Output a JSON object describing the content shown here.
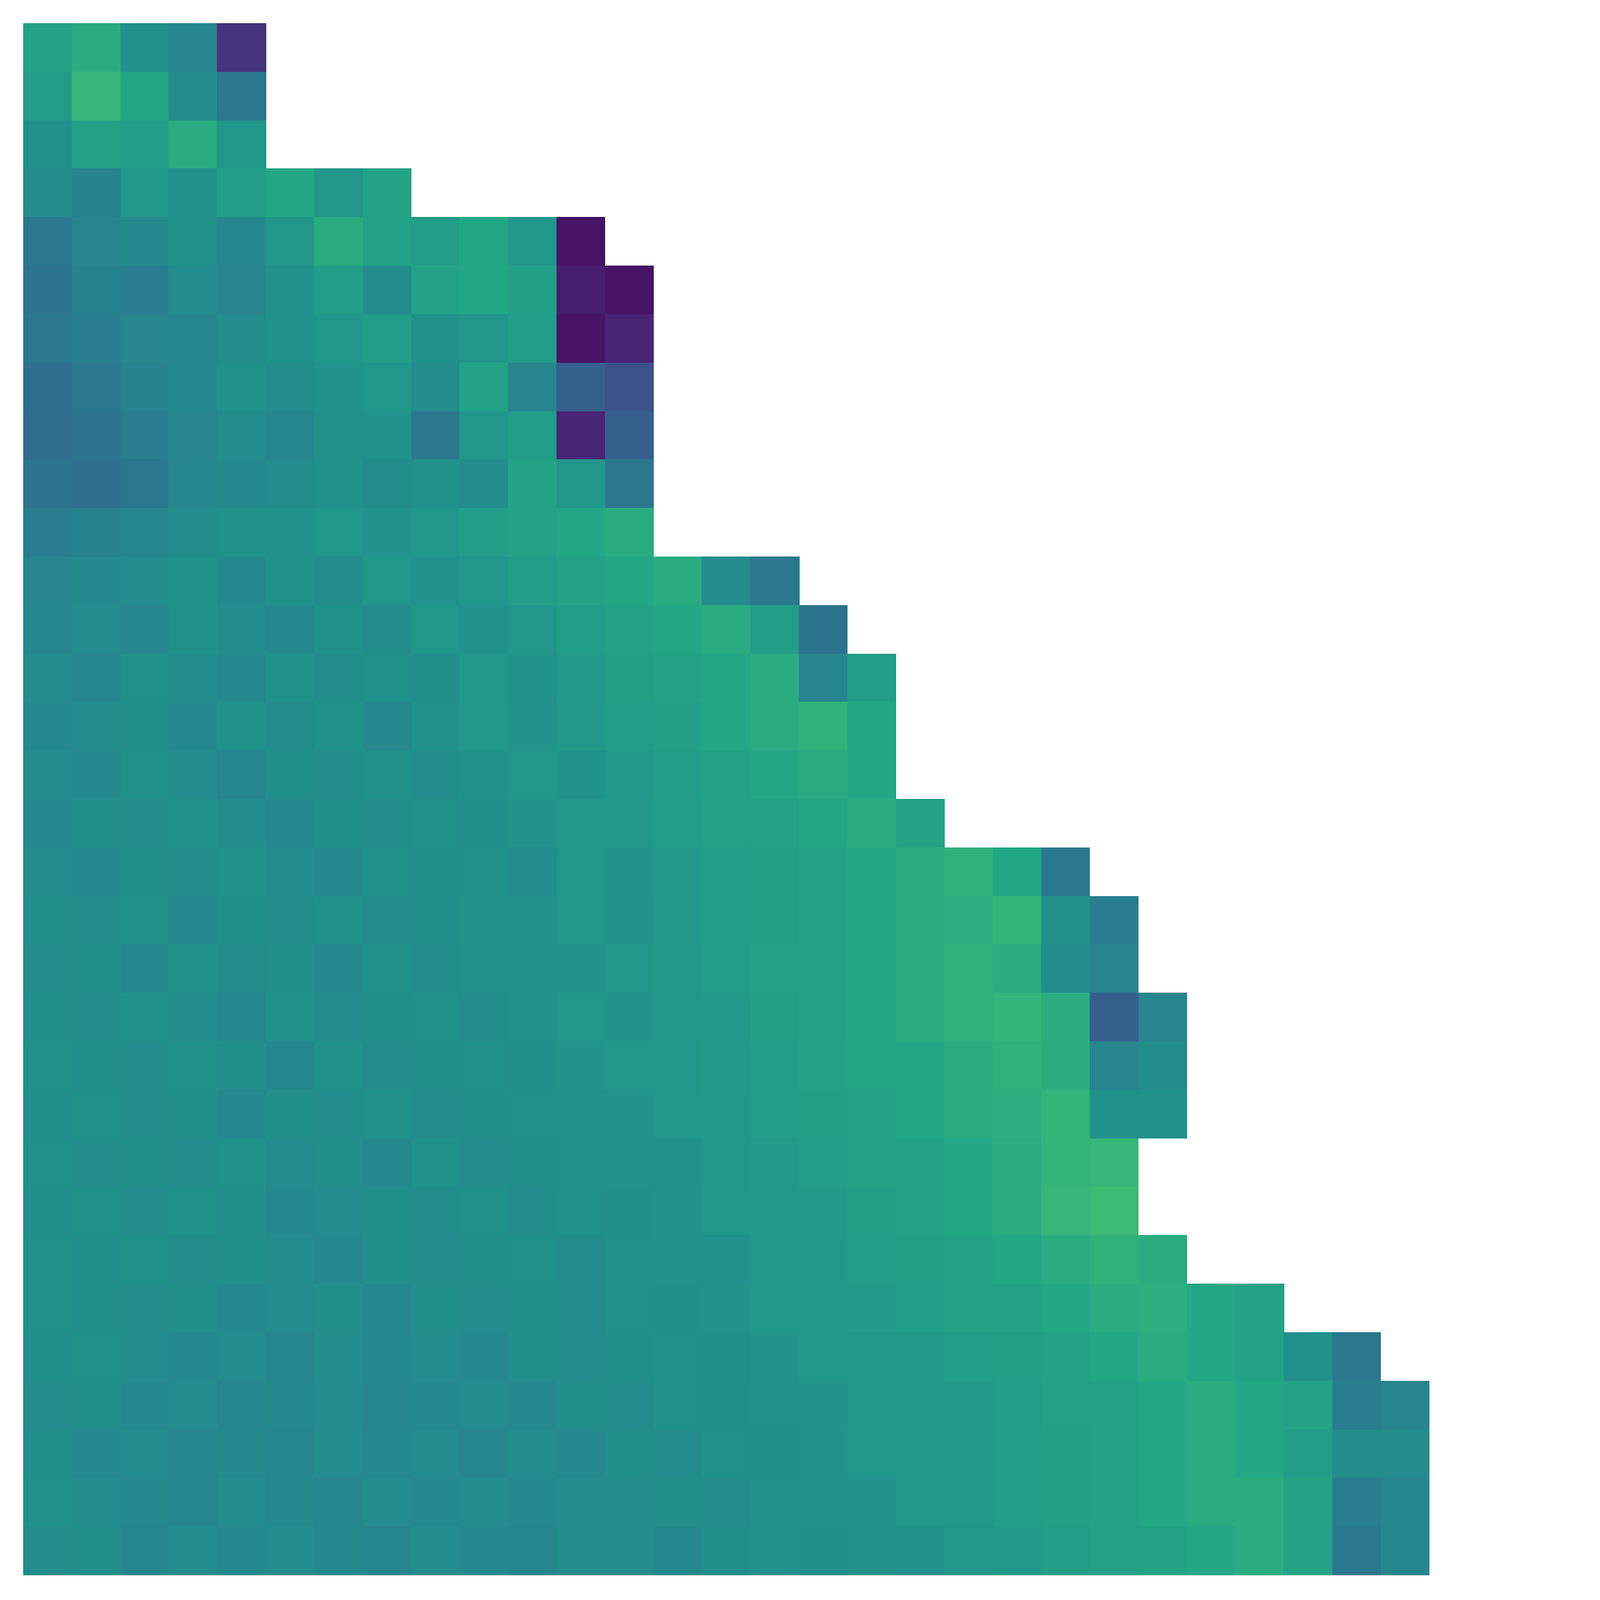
{
  "chart_data": {
    "type": "heatmap",
    "tick_labels": false,
    "zlim": [
      0,
      1
    ],
    "cells": [
      [
        0.58,
        0.62,
        0.5,
        0.45,
        0.15,
        null,
        null,
        null,
        null,
        null,
        null,
        null,
        null,
        null,
        null,
        null,
        null,
        null,
        null,
        null,
        null,
        null,
        null,
        null,
        null,
        null,
        null,
        null,
        null,
        null,
        null,
        null
      ],
      [
        0.55,
        0.66,
        0.6,
        0.48,
        0.4,
        null,
        null,
        null,
        null,
        null,
        null,
        null,
        null,
        null,
        null,
        null,
        null,
        null,
        null,
        null,
        null,
        null,
        null,
        null,
        null,
        null,
        null,
        null,
        null,
        null,
        null,
        null
      ],
      [
        0.5,
        0.58,
        0.55,
        0.62,
        0.52,
        null,
        null,
        null,
        null,
        null,
        null,
        null,
        null,
        null,
        null,
        null,
        null,
        null,
        null,
        null,
        null,
        null,
        null,
        null,
        null,
        null,
        null,
        null,
        null,
        null,
        null,
        null
      ],
      [
        0.48,
        0.44,
        0.52,
        0.5,
        0.55,
        0.6,
        0.52,
        0.58,
        null,
        null,
        null,
        null,
        null,
        null,
        null,
        null,
        null,
        null,
        null,
        null,
        null,
        null,
        null,
        null,
        null,
        null,
        null,
        null,
        null,
        null,
        null,
        null
      ],
      [
        0.4,
        0.45,
        0.47,
        0.5,
        0.46,
        0.52,
        0.62,
        0.58,
        0.55,
        0.6,
        0.52,
        0.05,
        null,
        null,
        null,
        null,
        null,
        null,
        null,
        null,
        null,
        null,
        null,
        null,
        null,
        null,
        null,
        null,
        null,
        null,
        null,
        null
      ],
      [
        0.38,
        0.44,
        0.42,
        0.48,
        0.45,
        0.5,
        0.55,
        0.48,
        0.58,
        0.6,
        0.56,
        0.08,
        0.05,
        null,
        null,
        null,
        null,
        null,
        null,
        null,
        null,
        null,
        null,
        null,
        null,
        null,
        null,
        null,
        null,
        null,
        null,
        null
      ],
      [
        0.4,
        0.42,
        0.45,
        0.46,
        0.48,
        0.5,
        0.52,
        0.55,
        0.5,
        0.52,
        0.55,
        0.05,
        0.1,
        null,
        null,
        null,
        null,
        null,
        null,
        null,
        null,
        null,
        null,
        null,
        null,
        null,
        null,
        null,
        null,
        null,
        null,
        null
      ],
      [
        0.36,
        0.4,
        0.44,
        0.47,
        0.5,
        0.48,
        0.5,
        0.52,
        0.48,
        0.58,
        0.45,
        0.3,
        0.25,
        null,
        null,
        null,
        null,
        null,
        null,
        null,
        null,
        null,
        null,
        null,
        null,
        null,
        null,
        null,
        null,
        null,
        null,
        null
      ],
      [
        0.35,
        0.38,
        0.42,
        0.45,
        0.48,
        0.46,
        0.5,
        0.5,
        0.4,
        0.52,
        0.55,
        0.1,
        0.3,
        null,
        null,
        null,
        null,
        null,
        null,
        null,
        null,
        null,
        null,
        null,
        null,
        null,
        null,
        null,
        null,
        null,
        null,
        null
      ],
      [
        0.38,
        0.36,
        0.4,
        0.46,
        0.47,
        0.48,
        0.5,
        0.48,
        0.5,
        0.48,
        0.58,
        0.52,
        0.4,
        null,
        null,
        null,
        null,
        null,
        null,
        null,
        null,
        null,
        null,
        null,
        null,
        null,
        null,
        null,
        null,
        null,
        null,
        null
      ],
      [
        0.42,
        0.44,
        0.46,
        0.48,
        0.5,
        0.5,
        0.52,
        0.5,
        0.52,
        0.55,
        0.58,
        0.6,
        0.62,
        null,
        null,
        null,
        null,
        null,
        null,
        null,
        null,
        null,
        null,
        null,
        null,
        null,
        null,
        null,
        null,
        null,
        null,
        null
      ],
      [
        0.45,
        0.47,
        0.48,
        0.5,
        0.47,
        0.5,
        0.48,
        0.52,
        0.5,
        0.52,
        0.55,
        0.58,
        0.6,
        0.62,
        0.48,
        0.4,
        null,
        null,
        null,
        null,
        null,
        null,
        null,
        null,
        null,
        null,
        null,
        null,
        null,
        null,
        null,
        null
      ],
      [
        0.46,
        0.48,
        0.46,
        0.5,
        0.48,
        0.47,
        0.5,
        0.48,
        0.52,
        0.5,
        0.52,
        0.55,
        0.58,
        0.6,
        0.62,
        0.55,
        0.38,
        null,
        null,
        null,
        null,
        null,
        null,
        null,
        null,
        null,
        null,
        null,
        null,
        null,
        null,
        null
      ],
      [
        0.48,
        0.46,
        0.5,
        0.48,
        0.47,
        0.5,
        0.48,
        0.5,
        0.49,
        0.52,
        0.5,
        0.54,
        0.56,
        0.58,
        0.6,
        0.62,
        0.45,
        0.55,
        null,
        null,
        null,
        null,
        null,
        null,
        null,
        null,
        null,
        null,
        null,
        null,
        null,
        null
      ],
      [
        0.47,
        0.48,
        0.49,
        0.47,
        0.5,
        0.48,
        0.5,
        0.47,
        0.5,
        0.52,
        0.51,
        0.53,
        0.55,
        0.56,
        0.6,
        0.62,
        0.64,
        0.6,
        null,
        null,
        null,
        null,
        null,
        null,
        null,
        null,
        null,
        null,
        null,
        null,
        null,
        null
      ],
      [
        0.48,
        0.47,
        0.5,
        0.48,
        0.46,
        0.49,
        0.48,
        0.5,
        0.48,
        0.5,
        0.52,
        0.5,
        0.54,
        0.55,
        0.58,
        0.6,
        0.62,
        0.6,
        null,
        null,
        null,
        null,
        null,
        null,
        null,
        null,
        null,
        null,
        null,
        null,
        null,
        null
      ],
      [
        0.47,
        0.49,
        0.48,
        0.5,
        0.48,
        0.47,
        0.49,
        0.48,
        0.5,
        0.49,
        0.51,
        0.52,
        0.53,
        0.55,
        0.57,
        0.58,
        0.6,
        0.62,
        0.58,
        null,
        null,
        null,
        null,
        null,
        null,
        null,
        null,
        null,
        null,
        null,
        null,
        null
      ],
      [
        0.48,
        0.47,
        0.49,
        0.48,
        0.5,
        0.48,
        0.47,
        0.5,
        0.49,
        0.5,
        0.48,
        0.52,
        0.51,
        0.53,
        0.55,
        0.56,
        0.58,
        0.6,
        0.62,
        0.64,
        0.6,
        0.4,
        null,
        null,
        null,
        null,
        null,
        null,
        null,
        null,
        null,
        null
      ],
      [
        0.49,
        0.48,
        0.5,
        0.47,
        0.49,
        0.48,
        0.5,
        0.48,
        0.49,
        0.51,
        0.5,
        0.52,
        0.5,
        0.53,
        0.55,
        0.56,
        0.58,
        0.6,
        0.62,
        0.63,
        0.65,
        0.5,
        0.42,
        null,
        null,
        null,
        null,
        null,
        null,
        null,
        null,
        null
      ],
      [
        0.48,
        0.49,
        0.47,
        0.5,
        0.48,
        0.49,
        0.47,
        0.5,
        0.48,
        0.5,
        0.51,
        0.5,
        0.52,
        0.54,
        0.55,
        0.57,
        0.58,
        0.6,
        0.62,
        0.64,
        0.62,
        0.48,
        0.45,
        null,
        null,
        null,
        null,
        null,
        null,
        null,
        null,
        null
      ],
      [
        0.49,
        0.48,
        0.5,
        0.48,
        0.47,
        0.5,
        0.48,
        0.49,
        0.5,
        0.48,
        0.5,
        0.52,
        0.51,
        0.53,
        0.54,
        0.56,
        0.58,
        0.6,
        0.62,
        0.64,
        0.65,
        0.62,
        0.3,
        0.45,
        null,
        null,
        null,
        null,
        null,
        null,
        null,
        null
      ],
      [
        0.5,
        0.49,
        0.48,
        0.5,
        0.49,
        0.47,
        0.5,
        0.48,
        0.49,
        0.5,
        0.49,
        0.51,
        0.52,
        0.52,
        0.54,
        0.55,
        0.57,
        0.59,
        0.6,
        0.62,
        0.64,
        0.62,
        0.45,
        0.48,
        null,
        null,
        null,
        null,
        null,
        null,
        null,
        null
      ],
      [
        0.49,
        0.5,
        0.48,
        0.49,
        0.47,
        0.49,
        0.48,
        0.5,
        0.48,
        0.49,
        0.5,
        0.5,
        0.51,
        0.52,
        0.53,
        0.55,
        0.56,
        0.58,
        0.6,
        0.62,
        0.63,
        0.65,
        0.5,
        0.5,
        null,
        null,
        null,
        null,
        null,
        null,
        null,
        null
      ],
      [
        0.5,
        0.48,
        0.49,
        0.48,
        0.5,
        0.48,
        0.49,
        0.47,
        0.5,
        0.48,
        0.49,
        0.5,
        0.51,
        0.5,
        0.52,
        0.54,
        0.55,
        0.57,
        0.58,
        0.6,
        0.62,
        0.65,
        0.66,
        null,
        null,
        null,
        null,
        null,
        null,
        null,
        null,
        null
      ],
      [
        0.49,
        0.5,
        0.48,
        0.5,
        0.49,
        0.47,
        0.48,
        0.49,
        0.48,
        0.5,
        0.48,
        0.5,
        0.49,
        0.51,
        0.52,
        0.53,
        0.54,
        0.56,
        0.58,
        0.6,
        0.62,
        0.66,
        0.68,
        null,
        null,
        null,
        null,
        null,
        null,
        null,
        null,
        null
      ],
      [
        0.5,
        0.49,
        0.5,
        0.48,
        0.49,
        0.48,
        0.47,
        0.49,
        0.48,
        0.49,
        0.5,
        0.48,
        0.5,
        0.51,
        0.5,
        0.52,
        0.53,
        0.55,
        0.56,
        0.58,
        0.6,
        0.62,
        0.64,
        0.62,
        null,
        null,
        null,
        null,
        null,
        null,
        null,
        null
      ],
      [
        0.5,
        0.49,
        0.48,
        0.49,
        0.47,
        0.48,
        0.49,
        0.47,
        0.49,
        0.48,
        0.49,
        0.48,
        0.5,
        0.49,
        0.51,
        0.52,
        0.53,
        0.54,
        0.55,
        0.57,
        0.58,
        0.6,
        0.62,
        0.63,
        0.6,
        0.58,
        null,
        null,
        null,
        null,
        null,
        null
      ],
      [
        0.49,
        0.5,
        0.48,
        0.47,
        0.48,
        0.46,
        0.48,
        0.47,
        0.48,
        0.47,
        0.49,
        0.48,
        0.49,
        0.5,
        0.49,
        0.51,
        0.52,
        0.52,
        0.54,
        0.55,
        0.56,
        0.58,
        0.6,
        0.62,
        0.6,
        0.58,
        0.5,
        0.4,
        null,
        null,
        null,
        null
      ],
      [
        0.48,
        0.49,
        0.47,
        0.48,
        0.46,
        0.47,
        0.48,
        0.46,
        0.47,
        0.48,
        0.47,
        0.49,
        0.48,
        0.5,
        0.49,
        0.5,
        0.51,
        0.52,
        0.53,
        0.54,
        0.55,
        0.57,
        0.58,
        0.6,
        0.62,
        0.6,
        0.58,
        0.42,
        0.45,
        null,
        null,
        null
      ],
      [
        0.49,
        0.47,
        0.48,
        0.46,
        0.47,
        0.46,
        0.48,
        0.47,
        0.48,
        0.46,
        0.48,
        0.47,
        0.49,
        0.48,
        0.5,
        0.49,
        0.5,
        0.52,
        0.52,
        0.53,
        0.55,
        0.56,
        0.58,
        0.6,
        0.62,
        0.6,
        0.55,
        0.48,
        0.48,
        null,
        null,
        null
      ],
      [
        0.5,
        0.48,
        0.47,
        0.46,
        0.48,
        0.47,
        0.46,
        0.48,
        0.47,
        0.48,
        0.47,
        0.48,
        0.48,
        0.49,
        0.48,
        0.5,
        0.51,
        0.5,
        0.52,
        0.54,
        0.55,
        0.56,
        0.58,
        0.6,
        0.62,
        0.62,
        0.58,
        0.42,
        0.46,
        null,
        null,
        null
      ],
      [
        0.48,
        0.49,
        0.46,
        0.48,
        0.47,
        0.48,
        0.47,
        0.46,
        0.48,
        0.47,
        0.46,
        0.48,
        0.48,
        0.47,
        0.49,
        0.5,
        0.49,
        0.51,
        0.5,
        0.52,
        0.54,
        0.55,
        0.57,
        0.58,
        0.6,
        0.62,
        0.58,
        0.4,
        0.46,
        null,
        null,
        null
      ]
    ]
  }
}
